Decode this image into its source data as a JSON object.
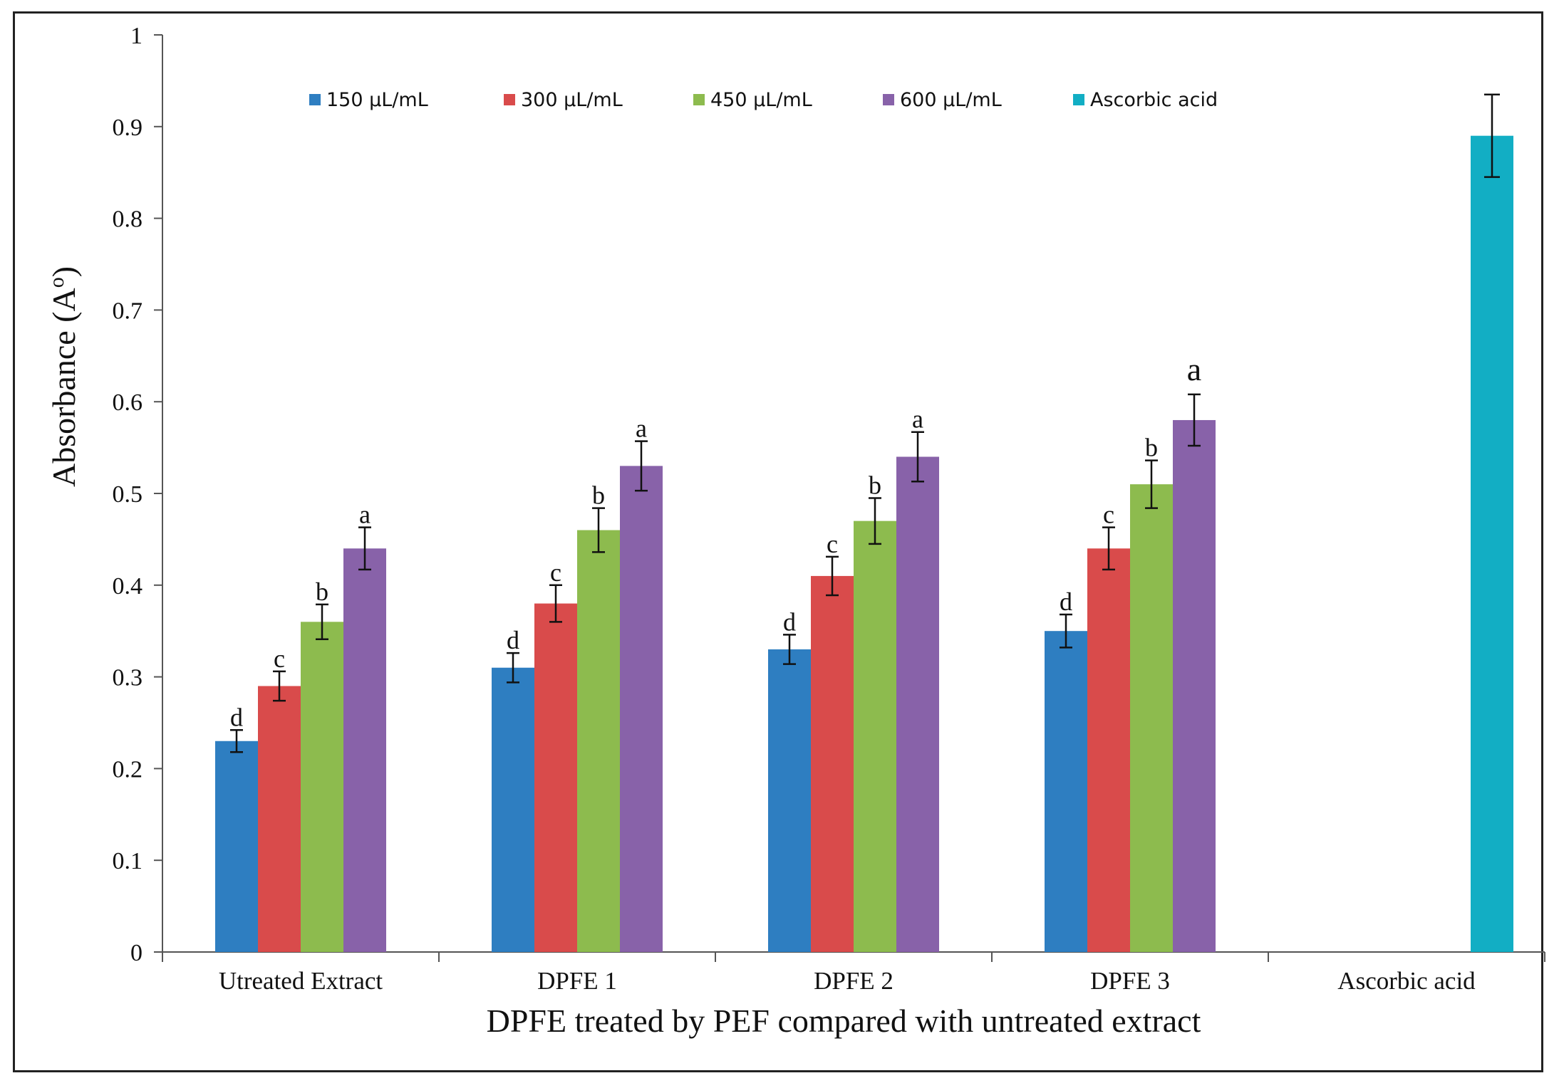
{
  "chart_data": {
    "type": "bar",
    "title": "",
    "xlabel": "DPFE treated by PEF compared with untreated extract",
    "ylabel": "Absorbance (A",
    "ylabel_superscript": "o",
    "ylabel_close": ")",
    "ylim": [
      0,
      1
    ],
    "yticks": [
      "0",
      "0.1",
      "0.2",
      "0.3",
      "0.4",
      "0.5",
      "0.6",
      "0.7",
      "0.8",
      "0.9",
      "1"
    ],
    "legend_position": "top",
    "categories": [
      "Utreated Extract",
      "DPFE 1",
      "DPFE 2",
      "DPFE 3",
      "Ascorbic acid"
    ],
    "series": [
      {
        "name": "150 µL/mL",
        "color": "#2E7EC1",
        "values": [
          0.23,
          0.31,
          0.33,
          0.35,
          null
        ],
        "errors": [
          0.012,
          0.016,
          0.016,
          0.018,
          null
        ],
        "labels": [
          "d",
          "d",
          "d",
          "d",
          null
        ]
      },
      {
        "name": "300 µL/mL",
        "color": "#D94B4B",
        "values": [
          0.29,
          0.38,
          0.41,
          0.44,
          null
        ],
        "errors": [
          0.016,
          0.02,
          0.021,
          0.023,
          null
        ],
        "labels": [
          "c",
          "c",
          "c",
          "c",
          null
        ]
      },
      {
        "name": "450 µL/mL",
        "color": "#8DBB4E",
        "values": [
          0.36,
          0.46,
          0.47,
          0.51,
          null
        ],
        "errors": [
          0.019,
          0.024,
          0.025,
          0.026,
          null
        ],
        "labels": [
          "b",
          "b",
          "b",
          "b",
          null
        ]
      },
      {
        "name": "600 µL/mL",
        "color": "#8862A9",
        "values": [
          0.44,
          0.53,
          0.54,
          0.58,
          null
        ],
        "errors": [
          0.023,
          0.027,
          0.027,
          0.028,
          null
        ],
        "labels": [
          "a",
          "a",
          "a",
          "a",
          null
        ]
      },
      {
        "name": "Ascorbic acid",
        "color": "#12AEC4",
        "values": [
          null,
          null,
          null,
          null,
          0.89
        ],
        "errors": [
          null,
          null,
          null,
          null,
          0.045
        ],
        "labels": [
          null,
          null,
          null,
          null,
          null
        ]
      }
    ]
  }
}
